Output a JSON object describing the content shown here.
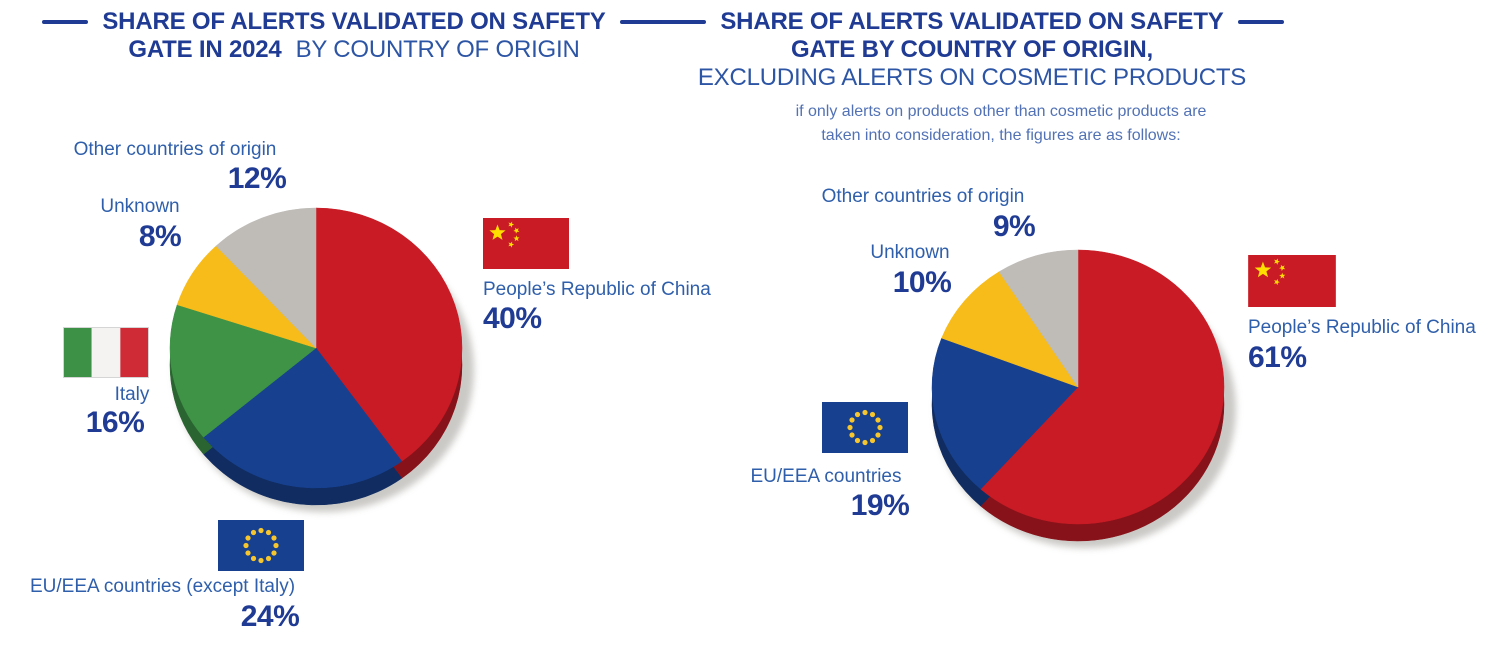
{
  "page": {
    "background": "#FFFFFF",
    "accent_navy": "#1F3B93",
    "label_blue": "#2F5FAB",
    "subtitle_blue": "#5272B5"
  },
  "chart_data": [
    {
      "type": "pie",
      "id": "share-alerts-2024-all",
      "title_line1_bold": "SHARE OF ALERTS VALIDATED ON SAFETY",
      "title_line2_bold": "GATE IN 2024",
      "title_line2_regular": "BY COUNTRY OF ORIGIN",
      "start_angle": "12 o'clock",
      "direction": "clockwise",
      "legend_position": "around pie",
      "slices": [
        {
          "label": "People’s Republic of China",
          "value": 40,
          "pct_label": "40%",
          "color": "#C81B25",
          "flag": "china"
        },
        {
          "label": "EU/EEA countries (except Italy)",
          "value": 24,
          "pct_label": "24%",
          "color": "#17418F",
          "flag": "eu"
        },
        {
          "label": "Italy",
          "value": 16,
          "pct_label": "16%",
          "color": "#3E9346",
          "flag": "italy"
        },
        {
          "label": "Unknown",
          "value": 8,
          "pct_label": "8%",
          "color": "#F7BC1A",
          "flag": null
        },
        {
          "label": "Other countries of origin",
          "value": 12,
          "pct_label": "12%",
          "color": "#BFBCB8",
          "flag": null
        }
      ]
    },
    {
      "type": "pie",
      "id": "share-alerts-excluding-cosmetics",
      "title_line1_bold": "SHARE OF ALERTS VALIDATED ON SAFETY",
      "title_line2_bold": "GATE BY COUNTRY OF ORIGIN,",
      "title_line3_regular": "EXCLUDING ALERTS ON COSMETIC PRODUCTS",
      "subtitle_line1": "if only alerts on products other than cosmetic products are",
      "subtitle_line2": "taken into consideration, the figures are as follows:",
      "start_angle": "12 o'clock",
      "direction": "clockwise",
      "legend_position": "around pie",
      "slices": [
        {
          "label": "People’s Republic of China",
          "value": 61,
          "pct_label": "61%",
          "color": "#C81B25",
          "flag": "china"
        },
        {
          "label": "EU/EEA countries",
          "value": 19,
          "pct_label": "19%",
          "color": "#17418F",
          "flag": "eu"
        },
        {
          "label": "Unknown",
          "value": 10,
          "pct_label": "10%",
          "color": "#F7BC1A",
          "flag": null
        },
        {
          "label": "Other countries of origin",
          "value": 9,
          "pct_label": "9%",
          "color": "#BFBCB8",
          "flag": null
        }
      ]
    }
  ],
  "flags": {
    "italy": {
      "green": "#3D9147",
      "white": "#F4F3F1",
      "red": "#CE2B37"
    },
    "eu": {
      "field": "#17418F",
      "stars": "#F7C52C"
    },
    "china": {
      "field": "#C81B25",
      "stars": "#FFDE00"
    }
  }
}
